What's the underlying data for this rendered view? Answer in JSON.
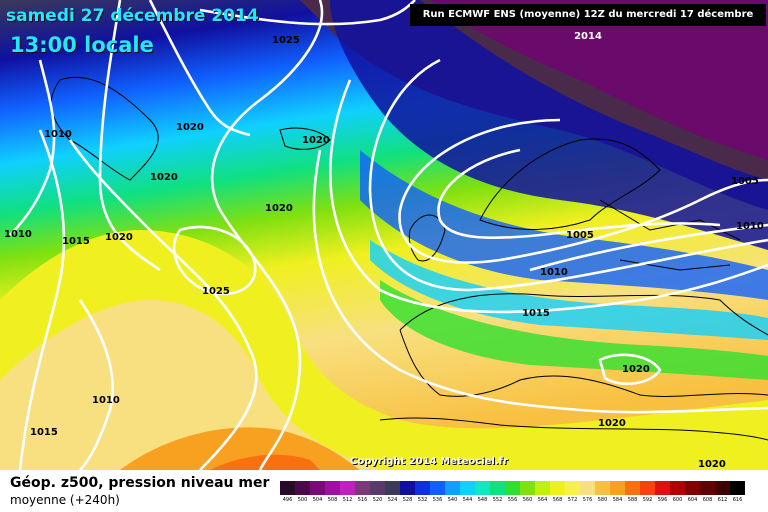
{
  "header": {
    "date": "samedi 27 décembre 2014",
    "time": "13:00 locale",
    "run": "Run ECMWF ENS (moyenne) 12Z du mercredi 17 décembre 2014"
  },
  "copyright": "Copyright 2014 Meteociel.fr",
  "footer": {
    "line1": "Géop. z500, pression niveau mer",
    "line2": "moyenne  (+240h)"
  },
  "legend": [
    {
      "value": "496",
      "color": "#2a0a2a"
    },
    {
      "value": "500",
      "color": "#4a0a4a"
    },
    {
      "value": "504",
      "color": "#7a0a7a"
    },
    {
      "value": "508",
      "color": "#a010a0"
    },
    {
      "value": "512",
      "color": "#c020c0"
    },
    {
      "value": "516",
      "color": "#7a3a7a"
    },
    {
      "value": "520",
      "color": "#5a3a6a"
    },
    {
      "value": "524",
      "color": "#3a3a5a"
    },
    {
      "value": "528",
      "color": "#1010a0"
    },
    {
      "value": "532",
      "color": "#1030e0"
    },
    {
      "value": "536",
      "color": "#1060ff"
    },
    {
      "value": "540",
      "color": "#10a0ff"
    },
    {
      "value": "544",
      "color": "#10d0ff"
    },
    {
      "value": "548",
      "color": "#10e8c0"
    },
    {
      "value": "552",
      "color": "#10e080"
    },
    {
      "value": "556",
      "color": "#30e030"
    },
    {
      "value": "560",
      "color": "#80e010"
    },
    {
      "value": "564",
      "color": "#c0f010"
    },
    {
      "value": "568",
      "color": "#f0f020"
    },
    {
      "value": "572",
      "color": "#f8f050"
    },
    {
      "value": "576",
      "color": "#f8e080"
    },
    {
      "value": "580",
      "color": "#f8c040"
    },
    {
      "value": "584",
      "color": "#f8a020"
    },
    {
      "value": "588",
      "color": "#f87010"
    },
    {
      "value": "592",
      "color": "#f84010"
    },
    {
      "value": "596",
      "color": "#e01010"
    },
    {
      "value": "600",
      "color": "#b00000"
    },
    {
      "value": "604",
      "color": "#800000"
    },
    {
      "value": "608",
      "color": "#600000"
    },
    {
      "value": "612",
      "color": "#400000"
    },
    {
      "value": "616",
      "color": "#000000"
    }
  ],
  "isobar_labels": [
    {
      "text": "1025"
    },
    {
      "text": "1020"
    },
    {
      "text": "1010"
    },
    {
      "text": "1020"
    },
    {
      "text": "1020"
    },
    {
      "text": "1020"
    },
    {
      "text": "1010"
    },
    {
      "text": "1015"
    },
    {
      "text": "1020"
    },
    {
      "text": "1025"
    },
    {
      "text": "1005"
    },
    {
      "text": "1010"
    },
    {
      "text": "1005"
    },
    {
      "text": "1010"
    },
    {
      "text": "1015"
    },
    {
      "text": "1020"
    },
    {
      "text": "1010"
    },
    {
      "text": "1020"
    },
    {
      "text": "1015"
    },
    {
      "text": "1020"
    }
  ]
}
